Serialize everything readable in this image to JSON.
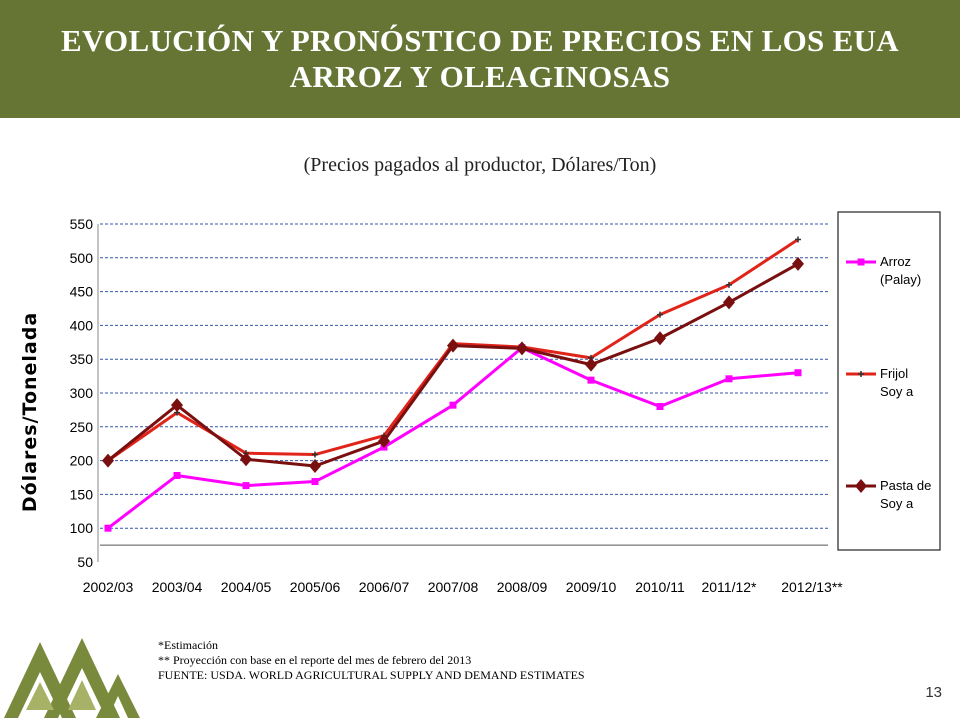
{
  "header": {
    "title_line1": "EVOLUCIÓN Y PRONÓSTICO DE PRECIOS EN LOS EUA",
    "title_line2": "ARROZ Y OLEAGINOSAS"
  },
  "subtitle": "(Precios pagados al productor, Dólares/Ton)",
  "chart_data": {
    "type": "line",
    "title": "",
    "xlabel": "",
    "ylabel": "Dólares/Tonelada",
    "ylim": [
      50,
      550
    ],
    "yticks": [
      50,
      100,
      150,
      200,
      250,
      300,
      350,
      400,
      450,
      500,
      550
    ],
    "grid": true,
    "legend_position": "right",
    "categories": [
      "2002/03",
      "2003/04",
      "2004/05",
      "2005/06",
      "2006/07",
      "2007/08",
      "2008/09",
      "2009/10",
      "2010/11",
      "2011/12*",
      "2012/13**"
    ],
    "series": [
      {
        "name": "Arroz (Palay)",
        "legend_lines": [
          "Arroz",
          "(Palay)"
        ],
        "color": "#ff00ff",
        "marker": "square",
        "values": [
          100,
          178,
          163,
          169,
          220,
          282,
          367,
          319,
          280,
          321,
          330
        ]
      },
      {
        "name": "Frijol Soya",
        "legend_lines": [
          "Frijol",
          "Soy a"
        ],
        "color": "#e0241a",
        "marker": "plus",
        "values": [
          200,
          271,
          211,
          209,
          237,
          373,
          368,
          352,
          416,
          460,
          527
        ]
      },
      {
        "name": "Pasta de Soya",
        "legend_lines": [
          "Pasta de",
          "Soy a"
        ],
        "color": "#7a0f0f",
        "marker": "diamond",
        "values": [
          200,
          282,
          202,
          192,
          229,
          370,
          366,
          342,
          381,
          434,
          491
        ]
      }
    ]
  },
  "notes": {
    "line1": "*Estimación",
    "line2": "** Proyección con base en el reporte  del mes de febrero del 2013",
    "line3": "FUENTE: USDA. WORLD AGRICULTURAL SUPPLY AND DEMAND ESTIMATES"
  },
  "page_number": "13"
}
